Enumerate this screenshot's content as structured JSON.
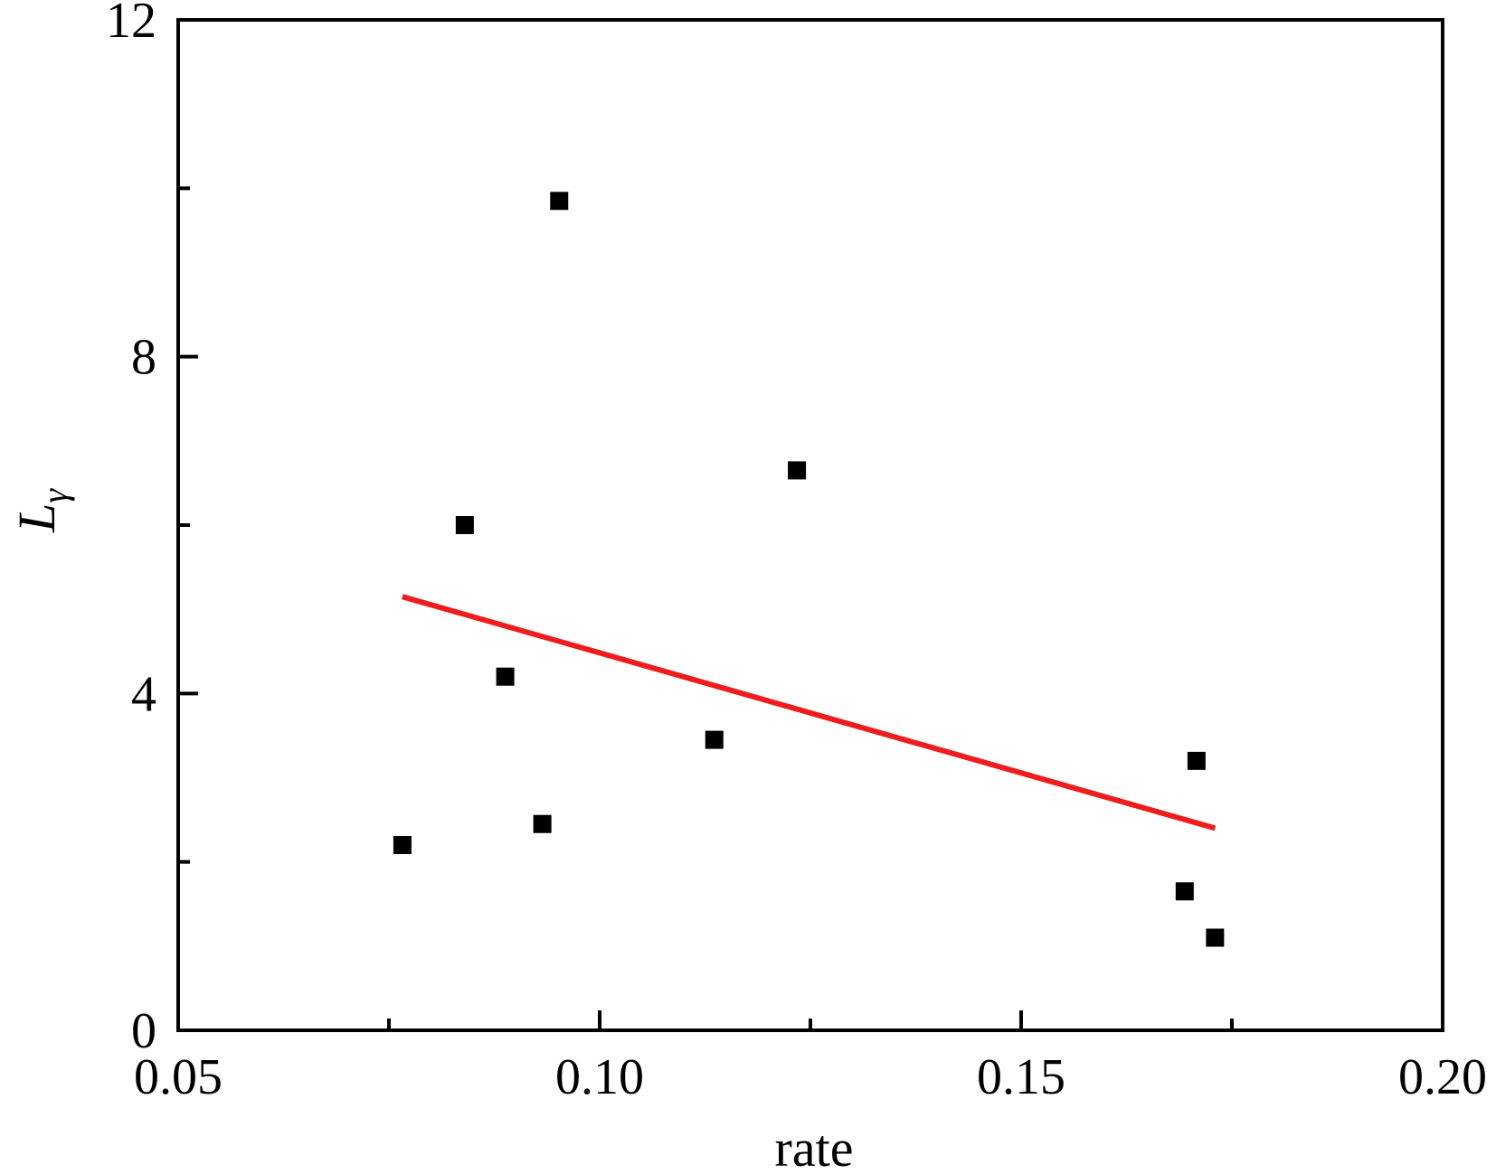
{
  "chart_data": {
    "type": "scatter",
    "title": "",
    "xlabel": "rate",
    "ylabel": "L",
    "ylabel_subscript": "γ",
    "xlim": [
      0.05,
      0.2
    ],
    "ylim": [
      0,
      12
    ],
    "x_ticks": [
      0.05,
      0.1,
      0.15,
      0.2
    ],
    "x_tick_labels": [
      "0.05",
      "0.10",
      "0.15",
      "0.20"
    ],
    "x_minor_ticks": [
      0.075,
      0.125,
      0.175
    ],
    "y_ticks": [
      0,
      4,
      8,
      12
    ],
    "y_tick_labels": [
      "0",
      "4",
      "8",
      "12"
    ],
    "y_minor_ticks": [
      2,
      6,
      10
    ],
    "grid": false,
    "series": [
      {
        "marker": "square",
        "color": "#000000",
        "points": [
          {
            "x": 0.0766,
            "y": 2.2
          },
          {
            "x": 0.084,
            "y": 6.0
          },
          {
            "x": 0.0888,
            "y": 4.2
          },
          {
            "x": 0.0932,
            "y": 2.45
          },
          {
            "x": 0.0952,
            "y": 9.85
          },
          {
            "x": 0.1136,
            "y": 3.45
          },
          {
            "x": 0.1234,
            "y": 6.65
          },
          {
            "x": 0.1694,
            "y": 1.65
          },
          {
            "x": 0.1708,
            "y": 3.2
          },
          {
            "x": 0.173,
            "y": 1.1
          }
        ]
      }
    ],
    "fit_line": {
      "color": "#ee1c1c",
      "points": [
        {
          "x": 0.0766,
          "y": 5.15
        },
        {
          "x": 0.173,
          "y": 2.4
        }
      ]
    }
  }
}
